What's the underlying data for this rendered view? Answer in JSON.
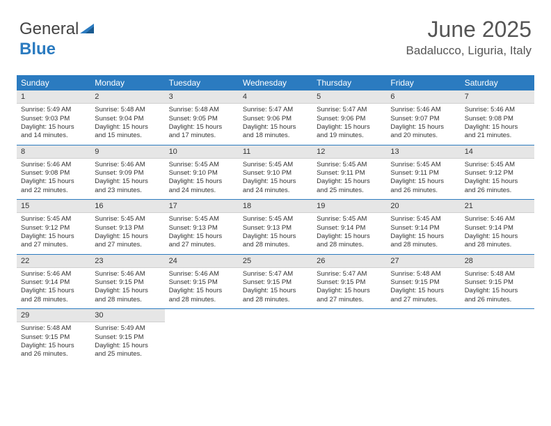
{
  "logo": {
    "word1": "General",
    "word2": "Blue"
  },
  "header": {
    "month": "June 2025",
    "location": "Badalucco, Liguria, Italy"
  },
  "colors": {
    "accent": "#2b7bc0",
    "header_bg": "#2b7bc0",
    "daynum_bg": "#e6e6e6"
  },
  "weekdays": [
    "Sunday",
    "Monday",
    "Tuesday",
    "Wednesday",
    "Thursday",
    "Friday",
    "Saturday"
  ],
  "weeks": [
    [
      {
        "n": "1",
        "sr": "5:49 AM",
        "ss": "9:03 PM",
        "dl": "15 hours and 14 minutes."
      },
      {
        "n": "2",
        "sr": "5:48 AM",
        "ss": "9:04 PM",
        "dl": "15 hours and 15 minutes."
      },
      {
        "n": "3",
        "sr": "5:48 AM",
        "ss": "9:05 PM",
        "dl": "15 hours and 17 minutes."
      },
      {
        "n": "4",
        "sr": "5:47 AM",
        "ss": "9:06 PM",
        "dl": "15 hours and 18 minutes."
      },
      {
        "n": "5",
        "sr": "5:47 AM",
        "ss": "9:06 PM",
        "dl": "15 hours and 19 minutes."
      },
      {
        "n": "6",
        "sr": "5:46 AM",
        "ss": "9:07 PM",
        "dl": "15 hours and 20 minutes."
      },
      {
        "n": "7",
        "sr": "5:46 AM",
        "ss": "9:08 PM",
        "dl": "15 hours and 21 minutes."
      }
    ],
    [
      {
        "n": "8",
        "sr": "5:46 AM",
        "ss": "9:08 PM",
        "dl": "15 hours and 22 minutes."
      },
      {
        "n": "9",
        "sr": "5:46 AM",
        "ss": "9:09 PM",
        "dl": "15 hours and 23 minutes."
      },
      {
        "n": "10",
        "sr": "5:45 AM",
        "ss": "9:10 PM",
        "dl": "15 hours and 24 minutes."
      },
      {
        "n": "11",
        "sr": "5:45 AM",
        "ss": "9:10 PM",
        "dl": "15 hours and 24 minutes."
      },
      {
        "n": "12",
        "sr": "5:45 AM",
        "ss": "9:11 PM",
        "dl": "15 hours and 25 minutes."
      },
      {
        "n": "13",
        "sr": "5:45 AM",
        "ss": "9:11 PM",
        "dl": "15 hours and 26 minutes."
      },
      {
        "n": "14",
        "sr": "5:45 AM",
        "ss": "9:12 PM",
        "dl": "15 hours and 26 minutes."
      }
    ],
    [
      {
        "n": "15",
        "sr": "5:45 AM",
        "ss": "9:12 PM",
        "dl": "15 hours and 27 minutes."
      },
      {
        "n": "16",
        "sr": "5:45 AM",
        "ss": "9:13 PM",
        "dl": "15 hours and 27 minutes."
      },
      {
        "n": "17",
        "sr": "5:45 AM",
        "ss": "9:13 PM",
        "dl": "15 hours and 27 minutes."
      },
      {
        "n": "18",
        "sr": "5:45 AM",
        "ss": "9:13 PM",
        "dl": "15 hours and 28 minutes."
      },
      {
        "n": "19",
        "sr": "5:45 AM",
        "ss": "9:14 PM",
        "dl": "15 hours and 28 minutes."
      },
      {
        "n": "20",
        "sr": "5:45 AM",
        "ss": "9:14 PM",
        "dl": "15 hours and 28 minutes."
      },
      {
        "n": "21",
        "sr": "5:46 AM",
        "ss": "9:14 PM",
        "dl": "15 hours and 28 minutes."
      }
    ],
    [
      {
        "n": "22",
        "sr": "5:46 AM",
        "ss": "9:14 PM",
        "dl": "15 hours and 28 minutes."
      },
      {
        "n": "23",
        "sr": "5:46 AM",
        "ss": "9:15 PM",
        "dl": "15 hours and 28 minutes."
      },
      {
        "n": "24",
        "sr": "5:46 AM",
        "ss": "9:15 PM",
        "dl": "15 hours and 28 minutes."
      },
      {
        "n": "25",
        "sr": "5:47 AM",
        "ss": "9:15 PM",
        "dl": "15 hours and 28 minutes."
      },
      {
        "n": "26",
        "sr": "5:47 AM",
        "ss": "9:15 PM",
        "dl": "15 hours and 27 minutes."
      },
      {
        "n": "27",
        "sr": "5:48 AM",
        "ss": "9:15 PM",
        "dl": "15 hours and 27 minutes."
      },
      {
        "n": "28",
        "sr": "5:48 AM",
        "ss": "9:15 PM",
        "dl": "15 hours and 26 minutes."
      }
    ],
    [
      {
        "n": "29",
        "sr": "5:48 AM",
        "ss": "9:15 PM",
        "dl": "15 hours and 26 minutes."
      },
      {
        "n": "30",
        "sr": "5:49 AM",
        "ss": "9:15 PM",
        "dl": "15 hours and 25 minutes."
      },
      null,
      null,
      null,
      null,
      null
    ]
  ],
  "labels": {
    "sunrise": "Sunrise:",
    "sunset": "Sunset:",
    "daylight": "Daylight:"
  }
}
